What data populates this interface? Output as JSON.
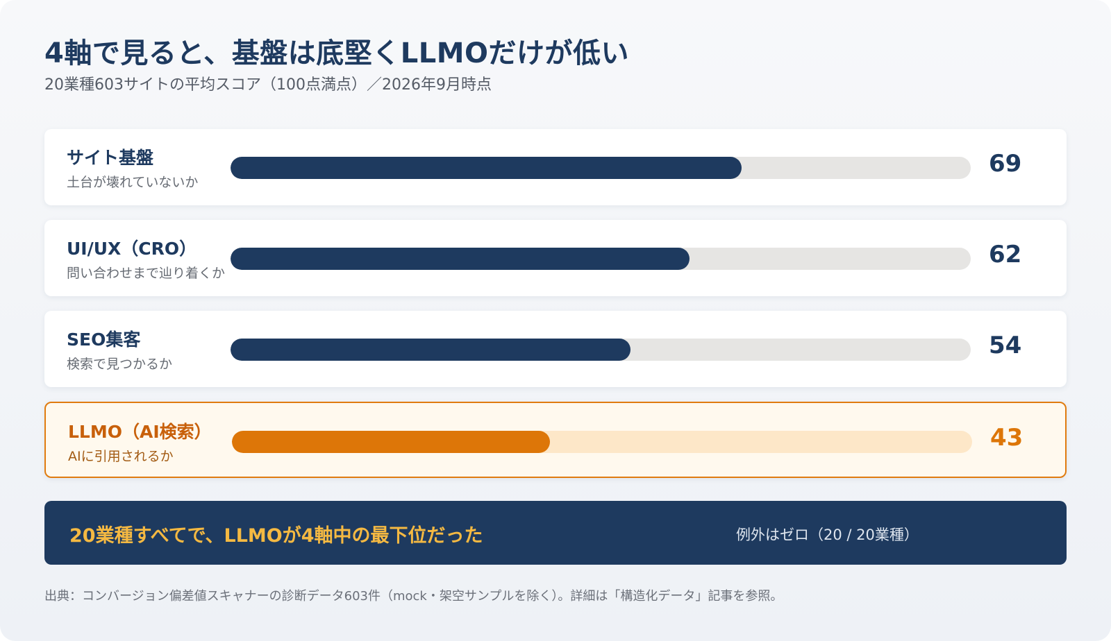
{
  "title": "4軸で見ると、基盤は底堅くLLMOだけが低い",
  "subtitle": "20業種603サイトの平均スコア（100点満点）／2026年9月時点",
  "chart_data": {
    "type": "bar",
    "orientation": "horizontal",
    "xlim": [
      0,
      100
    ],
    "categories": [
      "サイト基盤",
      "UI/UX（CRO）",
      "SEO集客",
      "LLMO（AI検索）"
    ],
    "descriptions": [
      "土台が壊れていないか",
      "問い合わせまで辿り着くか",
      "検索で見つかるか",
      "AIに引用されるか"
    ],
    "values": [
      69,
      62,
      54,
      43
    ],
    "highlight_index": 3,
    "colors": {
      "default": "#1e3a5f",
      "highlight": "#dd7608"
    }
  },
  "banner": {
    "main": "20業種すべてで、LLMOが4軸中の最下位だった",
    "side": "例外はゼロ（20 / 20業種）"
  },
  "source": "出典：コンバージョン偏差値スキャナーの診断データ603件（mock・架空サンプルを除く）。詳細は「構造化データ」記事を参照。"
}
